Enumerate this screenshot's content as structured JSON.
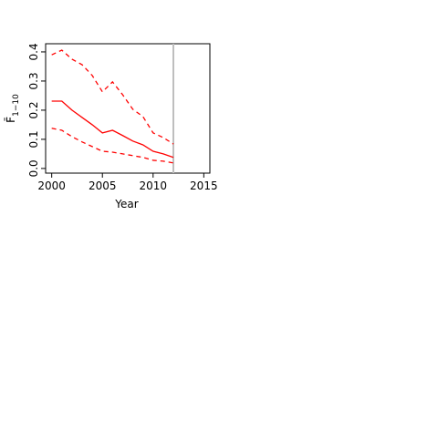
{
  "chart_data": {
    "type": "line",
    "xlabel": "Year",
    "ylabel": {
      "symbol": "F̄",
      "subscript": "1−10"
    },
    "x": [
      2000,
      2001,
      2002,
      2003,
      2004,
      2005,
      2006,
      2007,
      2008,
      2009,
      2010,
      2011,
      2012
    ],
    "series": [
      {
        "color": "#ff0000",
        "dash": false,
        "values": [
          0.231,
          0.231,
          0.2,
          0.175,
          0.15,
          0.122,
          0.131,
          0.113,
          0.094,
          0.081,
          0.059,
          0.05,
          0.038
        ]
      },
      {
        "color": "#ff0000",
        "dash": true,
        "values": [
          0.39,
          0.406,
          0.375,
          0.356,
          0.319,
          0.263,
          0.297,
          0.253,
          0.203,
          0.178,
          0.122,
          0.106,
          0.084
        ]
      },
      {
        "color": "#ff0000",
        "dash": true,
        "values": [
          0.138,
          0.131,
          0.109,
          0.091,
          0.075,
          0.059,
          0.056,
          0.05,
          0.044,
          0.038,
          0.028,
          0.025,
          0.019
        ]
      }
    ],
    "vline": {
      "x": 2012,
      "color": "#bebebe"
    },
    "xlim": [
      1999.4,
      2015.6
    ],
    "xticks": [
      2000,
      2005,
      2010,
      2015
    ],
    "ylim": [
      -0.016,
      0.428
    ],
    "yticks": [
      0.0,
      0.1,
      0.2,
      0.3,
      0.4
    ]
  }
}
